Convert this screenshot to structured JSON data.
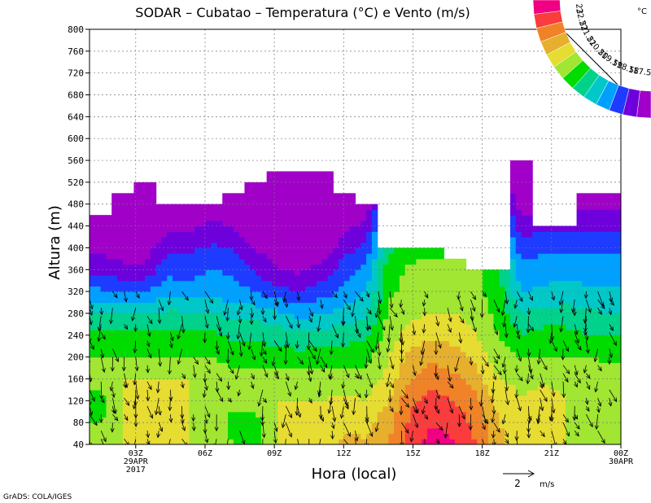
{
  "chart_data": {
    "type": "heatmap",
    "title": "SODAR – Cubatao – Temperatura (°C) e Vento (m/s)",
    "xlabel": "Hora (local)",
    "ylabel": "Altura (m)",
    "ylim": [
      40,
      800
    ],
    "y_ticks": [
      40,
      80,
      120,
      160,
      200,
      240,
      280,
      320,
      360,
      400,
      440,
      480,
      520,
      560,
      600,
      640,
      680,
      720,
      760,
      800
    ],
    "x_hours": [
      1,
      24
    ],
    "x_ticks": [
      {
        "hour": 3,
        "lines": [
          "03Z",
          "29APR",
          "2017"
        ]
      },
      {
        "hour": 6,
        "lines": [
          "06Z"
        ]
      },
      {
        "hour": 9,
        "lines": [
          "09Z"
        ]
      },
      {
        "hour": 12,
        "lines": [
          "12Z"
        ]
      },
      {
        "hour": 15,
        "lines": [
          "15Z"
        ]
      },
      {
        "hour": 18,
        "lines": [
          "18Z"
        ]
      },
      {
        "hour": 21,
        "lines": [
          "21Z"
        ]
      },
      {
        "hour": 24,
        "lines": [
          "00Z",
          "30APR"
        ]
      }
    ],
    "grid": true,
    "colorbar": {
      "unit": "°C",
      "placement": "top-right",
      "levels": [
        "17.5",
        "18",
        "18.5",
        "19",
        "19.5",
        "20",
        "20.5",
        "21",
        "21.5",
        "22",
        "22.5",
        "23"
      ],
      "colors": [
        "#a000c8",
        "#6e00dc",
        "#1e3cff",
        "#00a0ff",
        "#00c8c8",
        "#00d28c",
        "#00dc00",
        "#a0e632",
        "#e6dc32",
        "#e6af2d",
        "#f08228",
        "#fa3c3c",
        "#f00082"
      ]
    },
    "series": [
      {
        "hour": 0.5,
        "top": 460,
        "temps": [
          21.0,
          20.5,
          20.3,
          20.7,
          20.5,
          20.2,
          19.6,
          18.6,
          17.8
        ]
      },
      {
        "hour": 1.5,
        "top": 500,
        "temps": [
          21.0,
          21.0,
          21.0,
          21.0,
          20.5,
          20.2,
          19.6,
          18.6,
          17.6
        ]
      },
      {
        "hour": 2.5,
        "top": 520,
        "temps": [
          21.0,
          21.0,
          21.0,
          21.0,
          20.5,
          20.1,
          19.5,
          18.5,
          17.6
        ]
      },
      {
        "hour": 3.5,
        "top": 480,
        "temps": [
          21.0,
          21.0,
          21.0,
          21.0,
          20.5,
          20.1,
          19.6,
          18.9,
          18.3
        ]
      },
      {
        "hour": 4.5,
        "top": 480,
        "temps": [
          21.0,
          21.0,
          21.0,
          21.0,
          20.5,
          20.2,
          19.6,
          18.7,
          18.3
        ]
      },
      {
        "hour": 5.5,
        "top": 480,
        "temps": [
          21.0,
          20.8,
          20.8,
          21.0,
          20.5,
          20.1,
          19.5,
          18.8,
          18.5
        ]
      },
      {
        "hour": 6.5,
        "top": 500,
        "temps": [
          20.5,
          20.3,
          20.7,
          20.7,
          20.3,
          19.9,
          19.3,
          18.7,
          18.4
        ]
      },
      {
        "hour": 7.5,
        "top": 520,
        "temps": [
          20.4,
          20.3,
          20.7,
          20.7,
          20.2,
          19.9,
          19.3,
          18.5,
          17.9
        ]
      },
      {
        "hour": 8.5,
        "top": 540,
        "temps": [
          21.0,
          21.0,
          21.0,
          20.8,
          20.3,
          19.8,
          19.1,
          18.2,
          17.5
        ]
      },
      {
        "hour": 9.5,
        "top": 540,
        "temps": [
          21.0,
          21.0,
          21.0,
          20.7,
          20.2,
          19.6,
          18.8,
          18.0,
          17.4
        ]
      },
      {
        "hour": 10.5,
        "top": 540,
        "temps": [
          21.3,
          21.0,
          21.0,
          20.7,
          20.3,
          19.7,
          19.0,
          18.3,
          17.6
        ]
      },
      {
        "hour": 11.5,
        "top": 500,
        "temps": [
          21.6,
          21.4,
          21.1,
          20.8,
          20.3,
          19.8,
          19.2,
          18.6,
          18.2
        ]
      },
      {
        "hour": 12.5,
        "top": 480,
        "temps": [
          21.6,
          21.3,
          21.0,
          20.7,
          20.3,
          19.9,
          19.4,
          19.0,
          18.6
        ]
      },
      {
        "hour": 13.5,
        "top": 400,
        "temps": [
          22.0,
          21.8,
          21.5,
          21.2,
          21.0,
          20.8,
          20.6,
          20.4,
          20.3
        ]
      },
      {
        "hour": 14.5,
        "top": 400,
        "temps": [
          22.8,
          22.6,
          22.4,
          22.0,
          21.7,
          21.2,
          20.9,
          20.6,
          20.6
        ]
      },
      {
        "hour": 15.5,
        "top": 400,
        "temps": [
          23.2,
          23.0,
          22.7,
          22.3,
          21.9,
          21.4,
          21.0,
          20.8,
          20.7
        ]
      },
      {
        "hour": 16.5,
        "top": 380,
        "temps": [
          23.0,
          22.8,
          22.5,
          22.1,
          21.7,
          21.3,
          21.0,
          20.8,
          20.7
        ]
      },
      {
        "hour": 17.5,
        "top": 360,
        "temps": [
          22.5,
          22.3,
          22.1,
          21.7,
          21.3,
          21.0,
          20.8,
          20.6,
          20.6
        ]
      },
      {
        "hour": 18.5,
        "top": 360,
        "temps": [
          21.7,
          21.5,
          21.3,
          21.0,
          20.7,
          20.5,
          20.3,
          20.2,
          20.0
        ]
      },
      {
        "hour": 19.5,
        "top": 560,
        "temps": [
          21.2,
          21.1,
          21.0,
          20.9,
          20.5,
          20.0,
          19.5,
          19.0,
          18.6
        ]
      },
      {
        "hour": 20.5,
        "top": 440,
        "temps": [
          21.2,
          21.3,
          21.2,
          20.9,
          20.5,
          20.2,
          19.7,
          19.1,
          18.8
        ]
      },
      {
        "hour": 21.5,
        "top": 440,
        "temps": [
          21.0,
          21.0,
          21.0,
          20.9,
          20.5,
          20.2,
          19.7,
          19.2,
          18.8
        ]
      },
      {
        "hour": 22.5,
        "top": 500,
        "temps": [
          21.0,
          20.8,
          20.8,
          20.8,
          20.5,
          20.0,
          19.6,
          19.1,
          18.8
        ]
      },
      {
        "hour": 23.5,
        "top": 500,
        "temps": [
          21.0,
          20.5,
          20.5,
          20.7,
          20.4,
          20.0,
          19.5,
          19.1,
          18.8
        ]
      }
    ],
    "series_heights": [
      40,
      80,
      120,
      160,
      200,
      240,
      280,
      320,
      360
    ],
    "wind_scale": {
      "label": "2",
      "unit": "m/s",
      "speed": 2
    }
  },
  "footer": {
    "credit": "GrADS: COLA/IGES"
  }
}
